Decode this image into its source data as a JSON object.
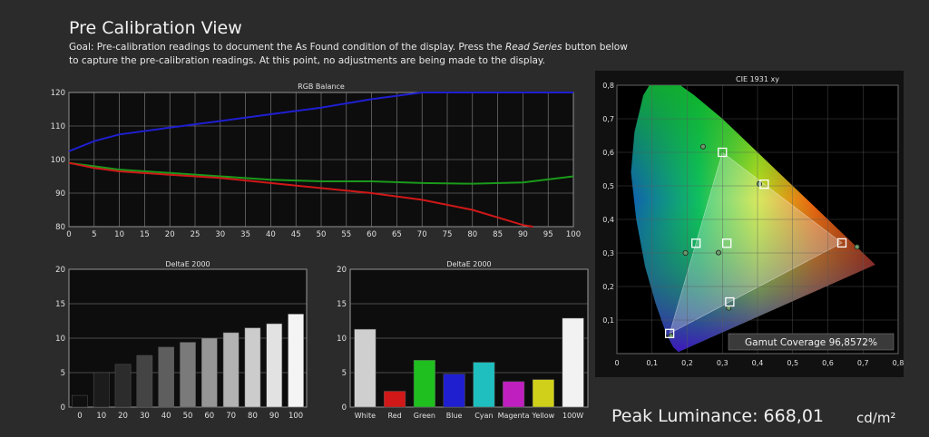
{
  "page": {
    "title": "Pre Calibration View",
    "goal_prefix": "Goal: Pre-calibration readings to document the As Found condition of the display. Press the ",
    "goal_emph": "Read Series",
    "goal_suffix": " button below to capture the pre-calibration readings. At this point, no adjustments are being made to the display.",
    "peak_label": "Peak Luminance: 668,01",
    "peak_unit": "cd/m²"
  },
  "colors": {
    "background": "#2b2b2b",
    "plot_background": "#0d0d0d",
    "red": "#d01818",
    "green": "#1a9a1a",
    "blue": "#1f1fd0"
  },
  "chart_data": [
    {
      "type": "line",
      "title": "RGB Balance",
      "xlim": [
        0,
        100
      ],
      "ylim": [
        80,
        120
      ],
      "xticks": [
        0,
        5,
        10,
        15,
        20,
        25,
        30,
        35,
        40,
        45,
        50,
        55,
        60,
        65,
        70,
        75,
        80,
        85,
        90,
        95,
        100
      ],
      "yticks": [
        80,
        90,
        100,
        110,
        120
      ],
      "grid": true,
      "series": [
        {
          "color": "#1f1fd0",
          "x": [
            0,
            5,
            10,
            20,
            30,
            40,
            50,
            60,
            70,
            80,
            90,
            100
          ],
          "y": [
            102.5,
            105.5,
            107.5,
            109.5,
            111.5,
            113.5,
            115.5,
            118,
            120,
            120,
            120,
            120
          ]
        },
        {
          "color": "#1a9a1a",
          "x": [
            0,
            5,
            10,
            20,
            30,
            40,
            50,
            60,
            70,
            80,
            90,
            100
          ],
          "y": [
            99,
            98,
            97,
            96,
            95,
            94,
            93.5,
            93.5,
            93,
            92.8,
            93.2,
            95
          ]
        },
        {
          "color": "#d01818",
          "x": [
            0,
            5,
            10,
            20,
            30,
            40,
            50,
            60,
            70,
            80,
            90,
            92
          ],
          "y": [
            99,
            97.5,
            96.5,
            95.5,
            94.5,
            93,
            91.5,
            90,
            88,
            85,
            80.5,
            80
          ]
        }
      ]
    },
    {
      "type": "bar",
      "title": "DeltaE 2000",
      "ylim": [
        0,
        20
      ],
      "yticks": [
        0,
        5,
        10,
        15,
        20
      ],
      "categories": [
        "0",
        "10",
        "20",
        "30",
        "40",
        "50",
        "60",
        "70",
        "80",
        "90",
        "100"
      ],
      "values": [
        1.7,
        5.0,
        6.2,
        7.5,
        8.7,
        9.4,
        10.0,
        10.8,
        11.5,
        12.1,
        13.5
      ],
      "bar_colors": [
        "#101010",
        "#1c1c1c",
        "#2c2c2c",
        "#444444",
        "#5e5e5e",
        "#7a7a7a",
        "#969696",
        "#b2b2b2",
        "#cccccc",
        "#e2e2e2",
        "#f4f4f4"
      ]
    },
    {
      "type": "bar",
      "title": "DeltaE 2000",
      "ylim": [
        0,
        20
      ],
      "yticks": [
        0,
        5,
        10,
        15,
        20
      ],
      "categories": [
        "White",
        "Red",
        "Green",
        "Blue",
        "Cyan",
        "Magenta",
        "Yellow",
        "100W"
      ],
      "values": [
        11.3,
        2.3,
        6.8,
        4.8,
        6.5,
        3.7,
        4.0,
        12.9
      ],
      "bar_colors": [
        "#cfcfcf",
        "#d01818",
        "#1fbf1f",
        "#1f1fd0",
        "#1fbfbf",
        "#c01fc0",
        "#d0d01a",
        "#f2f2f2"
      ]
    },
    {
      "type": "scatter",
      "title": "CIE 1931 xy",
      "xlim": [
        0,
        0.8
      ],
      "ylim": [
        0,
        0.8
      ],
      "xticks": [
        0,
        0.1,
        0.2,
        0.3,
        0.4,
        0.5,
        0.6,
        0.7,
        0.8
      ],
      "yticks": [
        0.1,
        0.2,
        0.3,
        0.4,
        0.5,
        0.6,
        0.7,
        0.8
      ],
      "tick_labels": [
        "0",
        "0,1",
        "0,2",
        "0,3",
        "0,4",
        "0,5",
        "0,6",
        "0,7",
        "0,8"
      ],
      "targets": [
        {
          "x": 0.64,
          "y": 0.33
        },
        {
          "x": 0.3,
          "y": 0.6
        },
        {
          "x": 0.15,
          "y": 0.06
        },
        {
          "x": 0.225,
          "y": 0.329
        },
        {
          "x": 0.321,
          "y": 0.154
        },
        {
          "x": 0.419,
          "y": 0.505
        },
        {
          "x": 0.3127,
          "y": 0.329
        }
      ],
      "measured": [
        {
          "x": 0.683,
          "y": 0.318
        },
        {
          "x": 0.245,
          "y": 0.617
        },
        {
          "x": 0.154,
          "y": 0.053
        },
        {
          "x": 0.195,
          "y": 0.3
        },
        {
          "x": 0.318,
          "y": 0.136
        },
        {
          "x": 0.405,
          "y": 0.506
        },
        {
          "x": 0.289,
          "y": 0.301
        }
      ],
      "gamut_coverage_label": "Gamut Coverage 96,8572%"
    }
  ]
}
